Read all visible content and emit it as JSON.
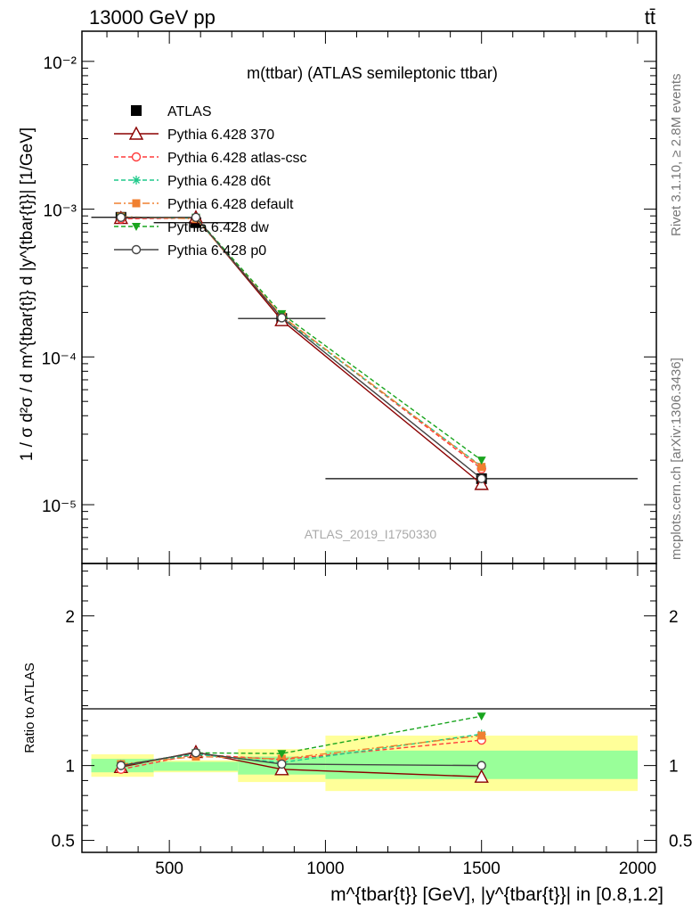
{
  "header": {
    "left": "13000 GeV pp",
    "right": "tt̄"
  },
  "side_labels": {
    "rivet": "Rivet 3.1.10, ≥ 2.8M events",
    "mcplots": "mcplots.cern.ch [arXiv:1306.3436]"
  },
  "chart_data": [
    {
      "type": "line",
      "title": "m(ttbar) (ATLAS semileptonic ttbar)",
      "watermark": "ATLAS_2019_I1750330",
      "ylabel": "1 / σ d²σ / d m^{tbar{t}} d |y^{tbar{t}}| [1/GeV]",
      "yscale": "log",
      "xlim": [
        220,
        2060
      ],
      "ylim": [
        4e-06,
        0.016
      ],
      "ytick_labels": [
        "10⁻⁵",
        "10⁻⁴",
        "10⁻³",
        "10⁻²"
      ],
      "ytick_values": [
        1e-05,
        0.0001,
        0.001,
        0.01
      ],
      "legend": "top-left",
      "bins": [
        [
          250,
          450
        ],
        [
          450,
          720
        ],
        [
          720,
          1000
        ],
        [
          1000,
          2000
        ]
      ],
      "x": [
        345,
        585,
        860,
        1500
      ],
      "series": [
        {
          "name": "ATLAS",
          "color": "#000000",
          "marker": "square",
          "dash": "none",
          "values": [
            0.00088,
            0.00081,
            0.000182,
            1.5e-05
          ]
        },
        {
          "name": "Pythia 6.428 370",
          "color": "#8b0000",
          "marker": "triangle-open",
          "dash": "solid",
          "values": [
            0.00087,
            0.00088,
            0.000177,
            1.38e-05
          ]
        },
        {
          "name": "Pythia 6.428 atlas-csc",
          "color": "#ff3b3b",
          "marker": "circle-open",
          "dash": "dashed",
          "values": [
            0.00086,
            0.00087,
            0.000188,
            1.75e-05
          ]
        },
        {
          "name": "Pythia 6.428 d6t",
          "color": "#1ec98a",
          "marker": "star",
          "dash": "dashed",
          "values": [
            0.00088,
            0.00087,
            0.000185,
            1.82e-05
          ]
        },
        {
          "name": "Pythia 6.428 default",
          "color": "#f08030",
          "marker": "square-filled",
          "dash": "dashdot",
          "values": [
            0.00089,
            0.00086,
            0.000189,
            1.8e-05
          ]
        },
        {
          "name": "Pythia 6.428 dw",
          "color": "#19a51e",
          "marker": "triangle-down",
          "dash": "dashed",
          "values": [
            0.00088,
            0.00088,
            0.000196,
            2e-05
          ]
        },
        {
          "name": "Pythia 6.428 p0",
          "color": "#444444",
          "marker": "circle-open",
          "dash": "solid",
          "values": [
            0.00088,
            0.00088,
            0.000184,
            1.5e-05
          ]
        }
      ]
    },
    {
      "type": "line",
      "ylabel": "Ratio to ATLAS",
      "xlabel": "m^{tbar{t}} [GeV], |y^{tbar{t}}| in [0.8,1.2]",
      "xlim": [
        220,
        2060
      ],
      "ylim": [
        0.42,
        2.35
      ],
      "ytick_labels": [
        "0.5",
        "1",
        "2"
      ],
      "ytick_values": [
        0.5,
        1,
        2
      ],
      "xtick_labels": [
        "500",
        "1000",
        "1500",
        "2000"
      ],
      "xtick_values": [
        500,
        1000,
        1500,
        2000
      ],
      "band_colors": {
        "inner": "#99ff99",
        "outer": "#ffff99"
      },
      "bands": [
        {
          "x": [
            250,
            450
          ],
          "inner": [
            0.955,
            1.045
          ],
          "outer": [
            0.925,
            1.075
          ]
        },
        {
          "x": [
            450,
            720
          ],
          "inner": [
            0.965,
            1.025
          ],
          "outer": [
            0.955,
            1.035
          ]
        },
        {
          "x": [
            720,
            1000
          ],
          "inner": [
            0.94,
            1.06
          ],
          "outer": [
            0.89,
            1.11
          ]
        },
        {
          "x": [
            1000,
            2000
          ],
          "inner": [
            0.91,
            1.1
          ],
          "outer": [
            0.83,
            1.2
          ]
        }
      ],
      "x": [
        345,
        585,
        860,
        1500
      ],
      "series": [
        {
          "name": "Pythia 6.428 370",
          "color": "#8b0000",
          "marker": "triangle-open",
          "dash": "solid",
          "values": [
            0.99,
            1.09,
            0.975,
            0.925
          ]
        },
        {
          "name": "Pythia 6.428 atlas-csc",
          "color": "#ff3b3b",
          "marker": "circle-open",
          "dash": "dashed",
          "values": [
            0.975,
            1.075,
            1.04,
            1.17
          ]
        },
        {
          "name": "Pythia 6.428 d6t",
          "color": "#1ec98a",
          "marker": "star",
          "dash": "dashed",
          "values": [
            1.0,
            1.075,
            1.02,
            1.21
          ]
        },
        {
          "name": "Pythia 6.428 default",
          "color": "#f08030",
          "marker": "square-filled",
          "dash": "dashdot",
          "values": [
            1.01,
            1.06,
            1.045,
            1.2
          ]
        },
        {
          "name": "Pythia 6.428 dw",
          "color": "#19a51e",
          "marker": "triangle-down",
          "dash": "dashed",
          "values": [
            1.0,
            1.085,
            1.08,
            1.33
          ]
        },
        {
          "name": "Pythia 6.428 p0",
          "color": "#444444",
          "marker": "circle-open",
          "dash": "solid",
          "values": [
            1.0,
            1.085,
            1.01,
            1.0
          ]
        }
      ]
    }
  ]
}
